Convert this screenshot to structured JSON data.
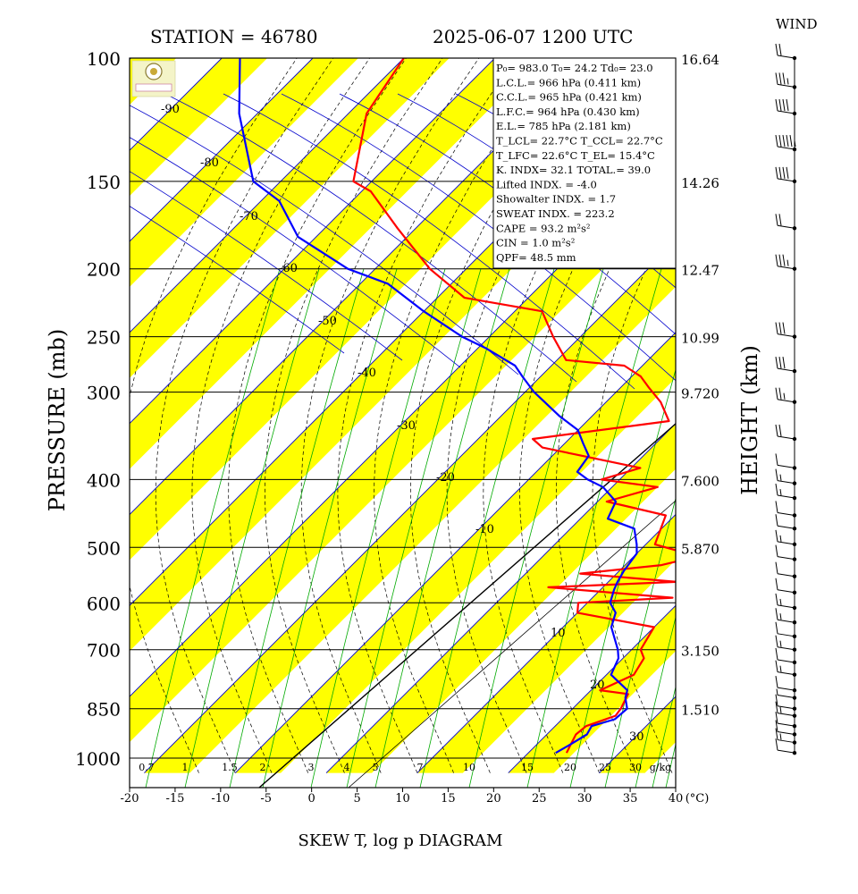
{
  "header": {
    "station": "STATION = 46780",
    "datetime": "2025-06-07 1200 UTC",
    "wind_title": "WIND"
  },
  "footer": {
    "diagram_title": "SKEW T, log p DIAGRAM",
    "temp_unit": "(°C)"
  },
  "colors": {
    "band": "#ffff00",
    "isotherm": "#0000cc",
    "mixing_ratio": "#00aa00",
    "adiabat": "#000000",
    "temperature": "#ff0000",
    "dewpoint": "#0000ff",
    "grid": "#000000"
  },
  "stats": [
    "P₀= 983.0 T₀= 24.2 Td₀= 23.0",
    "L.C.L.= 966 hPa (0.411 km)",
    "C.C.L.= 965 hPa (0.421 km)",
    "L.F.C.= 964 hPa (0.430 km)",
    "E.L.= 785 hPa (2.181 km)",
    "T_LCL= 22.7°C  T_CCL= 22.7°C",
    "T_LFC= 22.6°C  T_EL= 15.4°C",
    "K. INDX= 32.1  TOTAL.= 39.0",
    "Lifted INDX. =  -4.0",
    "Showalter INDX. =   1.7",
    "SWEAT INDX. = 223.2",
    "CAPE =  93.2 m²s²",
    "CIN  =   1.0 m²s²",
    "QPF= 48.5 mm"
  ],
  "chart_data": {
    "type": "line",
    "xlabel": "",
    "ylabel": "PRESSURE (mb)",
    "y2label": "HEIGHT (km)",
    "x_range": [
      -20,
      40
    ],
    "x_ticks": [
      -20,
      -15,
      -10,
      -5,
      0,
      5,
      10,
      15,
      20,
      25,
      30,
      35,
      40
    ],
    "x_unit": "(°C)",
    "y_log": true,
    "y_range": [
      100,
      1050
    ],
    "pressure_ticks": [
      100,
      150,
      200,
      250,
      300,
      400,
      500,
      600,
      700,
      850,
      1000
    ],
    "height_labels": [
      {
        "p": 100,
        "label": "16.64"
      },
      {
        "p": 150,
        "label": "14.26"
      },
      {
        "p": 200,
        "label": "12.47"
      },
      {
        "p": 250,
        "label": "10.99"
      },
      {
        "p": 300,
        "label": "9.720"
      },
      {
        "p": 400,
        "label": "7.600"
      },
      {
        "p": 500,
        "label": "5.870"
      },
      {
        "p": 700,
        "label": "3.150"
      },
      {
        "p": 850,
        "label": "1.510"
      }
    ],
    "isotherm_labels": [
      {
        "t": -90,
        "label": "-90"
      },
      {
        "t": -80,
        "label": "-80"
      },
      {
        "t": -70,
        "label": "-70"
      },
      {
        "t": -60,
        "label": "-60"
      },
      {
        "t": -50,
        "label": "-50"
      },
      {
        "t": -40,
        "label": "-40"
      },
      {
        "t": -30,
        "label": "-30"
      },
      {
        "t": -20,
        "label": "-20"
      },
      {
        "t": -10,
        "label": "-10"
      },
      {
        "t": 10,
        "label": "10"
      },
      {
        "t": 20,
        "label": "20"
      },
      {
        "t": 30,
        "label": "30"
      }
    ],
    "mixing_ratio_labels": [
      "0.7",
      "1",
      "1.5",
      "2",
      "3",
      "4",
      "5",
      "7",
      "10",
      "15",
      "20",
      "25",
      "30"
    ],
    "mixing_ratio_unit": "g/kg",
    "series": [
      {
        "role": "temperature",
        "points": [
          [
            983,
            24.2
          ],
          [
            960,
            23.8
          ],
          [
            925,
            23.2
          ],
          [
            900,
            23.4
          ],
          [
            870,
            25.5
          ],
          [
            850,
            25.3
          ],
          [
            810,
            24.5
          ],
          [
            800,
            21.0
          ],
          [
            760,
            23.0
          ],
          [
            720,
            22.3
          ],
          [
            700,
            21.0
          ],
          [
            650,
            20.0
          ],
          [
            620,
            10.0
          ],
          [
            600,
            9.0
          ],
          [
            590,
            18.8
          ],
          [
            570,
            4.0
          ],
          [
            560,
            17.5
          ],
          [
            545,
            6.0
          ],
          [
            530,
            14.0
          ],
          [
            515,
            17.0
          ],
          [
            495,
            11.0
          ],
          [
            450,
            9.0
          ],
          [
            430,
            1.0
          ],
          [
            410,
            5.0
          ],
          [
            400,
            -2.0
          ],
          [
            385,
            1.0
          ],
          [
            360,
            -12.0
          ],
          [
            350,
            -14.0
          ],
          [
            330,
            -1.0
          ],
          [
            310,
            -4.0
          ],
          [
            295,
            -7.0
          ],
          [
            285,
            -9.0
          ],
          [
            275,
            -12.0
          ],
          [
            270,
            -19.0
          ],
          [
            250,
            -23.0
          ],
          [
            230,
            -27.0
          ],
          [
            220,
            -37.0
          ],
          [
            200,
            -44.0
          ],
          [
            175,
            -52.0
          ],
          [
            155,
            -59.0
          ],
          [
            150,
            -62.0
          ],
          [
            120,
            -68.0
          ],
          [
            100,
            -70.0
          ]
        ]
      },
      {
        "role": "dewpoint",
        "points": [
          [
            983,
            23.0
          ],
          [
            960,
            23.6
          ],
          [
            925,
            24.4
          ],
          [
            900,
            24.0
          ],
          [
            880,
            25.8
          ],
          [
            850,
            26.0
          ],
          [
            820,
            24.6
          ],
          [
            800,
            24.0
          ],
          [
            760,
            20.5
          ],
          [
            720,
            19.5
          ],
          [
            700,
            18.5
          ],
          [
            650,
            15.3
          ],
          [
            620,
            14.2
          ],
          [
            600,
            12.5
          ],
          [
            575,
            11.5
          ],
          [
            560,
            11.0
          ],
          [
            540,
            10.5
          ],
          [
            510,
            10.0
          ],
          [
            495,
            9.0
          ],
          [
            470,
            7.0
          ],
          [
            455,
            3.0
          ],
          [
            430,
            2.0
          ],
          [
            410,
            -1.0
          ],
          [
            400,
            -3.5
          ],
          [
            390,
            -5.5
          ],
          [
            370,
            -6.0
          ],
          [
            355,
            -8.0
          ],
          [
            340,
            -10.0
          ],
          [
            325,
            -13.5
          ],
          [
            300,
            -19.0
          ],
          [
            285,
            -22.0
          ],
          [
            275,
            -24.0
          ],
          [
            260,
            -29.0
          ],
          [
            250,
            -33.0
          ],
          [
            230,
            -40.0
          ],
          [
            210,
            -47.0
          ],
          [
            200,
            -53.0
          ],
          [
            180,
            -62.0
          ],
          [
            160,
            -68.0
          ],
          [
            150,
            -73.0
          ],
          [
            120,
            -82.0
          ],
          [
            100,
            -88.0
          ]
        ]
      }
    ],
    "wind_barbs": [
      {
        "p": 983,
        "speed": 10
      },
      {
        "p": 950,
        "speed": 15
      },
      {
        "p": 925,
        "speed": 10
      },
      {
        "p": 900,
        "speed": 10
      },
      {
        "p": 870,
        "speed": 15
      },
      {
        "p": 850,
        "speed": 10
      },
      {
        "p": 820,
        "speed": 5
      },
      {
        "p": 800,
        "speed": 10
      },
      {
        "p": 760,
        "speed": 15
      },
      {
        "p": 730,
        "speed": 10
      },
      {
        "p": 700,
        "speed": 15
      },
      {
        "p": 670,
        "speed": 10
      },
      {
        "p": 640,
        "speed": 15
      },
      {
        "p": 610,
        "speed": 15
      },
      {
        "p": 580,
        "speed": 10
      },
      {
        "p": 550,
        "speed": 10
      },
      {
        "p": 520,
        "speed": 10
      },
      {
        "p": 495,
        "speed": 15
      },
      {
        "p": 470,
        "speed": 10
      },
      {
        "p": 450,
        "speed": 10
      },
      {
        "p": 425,
        "speed": 15
      },
      {
        "p": 405,
        "speed": 15
      },
      {
        "p": 385,
        "speed": 10
      },
      {
        "p": 350,
        "speed": 20
      },
      {
        "p": 310,
        "speed": 25
      },
      {
        "p": 280,
        "speed": 30
      },
      {
        "p": 250,
        "speed": 30
      },
      {
        "p": 200,
        "speed": 35
      },
      {
        "p": 175,
        "speed": 20
      },
      {
        "p": 150,
        "speed": 40
      },
      {
        "p": 135,
        "speed": 55
      },
      {
        "p": 120,
        "speed": 40
      },
      {
        "p": 110,
        "speed": 35
      },
      {
        "p": 100,
        "speed": 20
      }
    ]
  }
}
